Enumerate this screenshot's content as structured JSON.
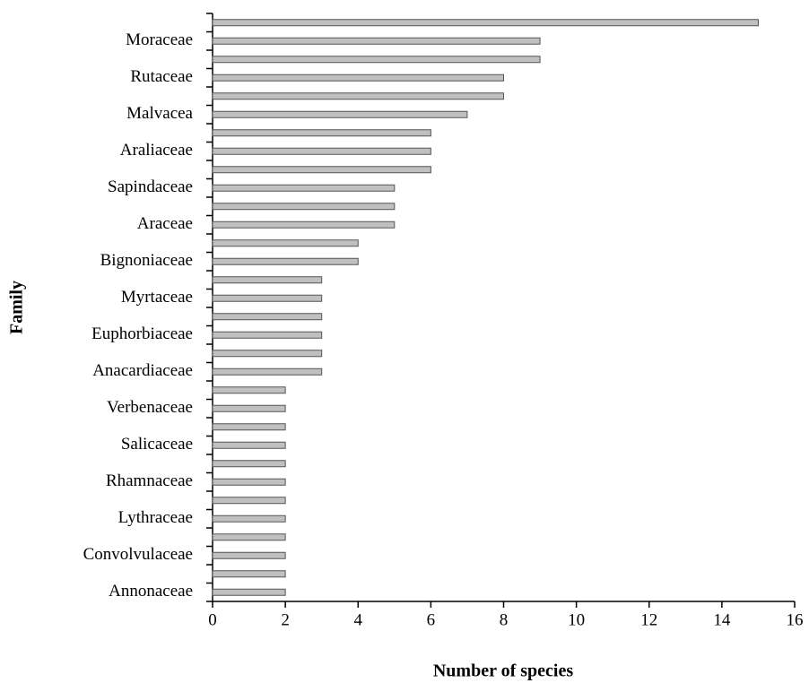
{
  "chart_data": {
    "type": "hbar",
    "x_label": "Number of species",
    "y_label": "Family",
    "categories": [
      null,
      "Moraceae",
      null,
      "Rutaceae",
      null,
      "Malvacea",
      null,
      "Araliaceae",
      null,
      "Sapindaceae",
      null,
      "Araceae",
      null,
      "Bignoniaceae",
      null,
      "Myrtaceae",
      null,
      "Euphorbiaceae",
      null,
      "Anacardiaceae",
      null,
      "Verbenaceae",
      null,
      "Salicaceae",
      null,
      "Rhamnaceae",
      null,
      "Lythraceae",
      null,
      "Convolvulaceae",
      null,
      "Annonaceae"
    ],
    "values": [
      15,
      9,
      9,
      8,
      8,
      7,
      6,
      6,
      6,
      5,
      5,
      5,
      4,
      4,
      3,
      3,
      3,
      3,
      3,
      3,
      2,
      2,
      2,
      2,
      2,
      2,
      2,
      2,
      2,
      2,
      2,
      2
    ],
    "color": "#c0c0c0",
    "xlim": [
      0,
      16
    ],
    "xticks": [
      0,
      2,
      4,
      6,
      8,
      10,
      12,
      14,
      16
    ]
  }
}
